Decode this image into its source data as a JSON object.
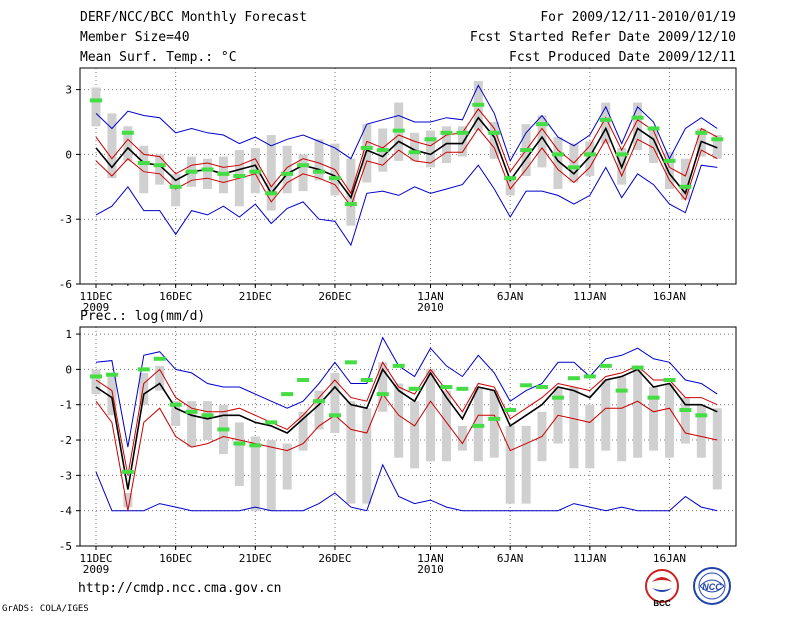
{
  "header": {
    "left": [
      "DERF/NCC/BCC Monthly Forecast",
      "Member Size=40",
      "Mean Surf. Temp.: °C"
    ],
    "right": [
      "For 2009/12/11-2010/01/19",
      "Fcst Started Refer Date 2009/12/10",
      "Fcst Produced Date 2009/12/11"
    ]
  },
  "footer": {
    "url": "http://cmdp.ncc.cma.gov.cn",
    "credit": "GrADS: COLA/IGES"
  },
  "logos": {
    "bcc": "BCC",
    "ncc": "NCC"
  },
  "colors": {
    "ensemble": "#0000cc",
    "spread": "#cc0000",
    "mean": "#000000",
    "box": "#d0d0d0",
    "observed": "#44dd44"
  },
  "chart_data": [
    {
      "type": "line",
      "title": "Mean Surf. Temp.: °C",
      "ylabel": "°C",
      "ylim": [
        -6,
        4
      ],
      "yticks": [
        -6,
        -3,
        0,
        3
      ],
      "xtick_positions": [
        0,
        5,
        10,
        15,
        21,
        26,
        31,
        36
      ],
      "xtick_labels": [
        "11DEC",
        "16DEC",
        "21DEC",
        "26DEC",
        "1JAN",
        "6JAN",
        "11JAN",
        "16JAN"
      ],
      "xtick_sublabels": {
        "0": "2009",
        "21": "2010"
      },
      "n_days": 40,
      "series": [
        {
          "name": "ensemble max",
          "role": "max",
          "values": [
            1.9,
            1.2,
            2.0,
            1.8,
            1.7,
            1.0,
            1.2,
            1.0,
            0.9,
            0.5,
            0.8,
            0.4,
            0.7,
            0.9,
            0.6,
            0.3,
            -0.2,
            1.4,
            1.6,
            1.8,
            1.5,
            1.5,
            1.7,
            1.6,
            3.2,
            1.9,
            -0.3,
            1.0,
            1.8,
            0.8,
            0.4,
            0.9,
            2.2,
            0.5,
            2.2,
            1.5,
            -0.2,
            1.2,
            1.7,
            1.2
          ]
        },
        {
          "name": "upper spread",
          "role": "upper",
          "values": [
            0.8,
            -0.2,
            0.7,
            0.0,
            -0.1,
            -0.9,
            -0.5,
            -0.4,
            -0.6,
            -0.5,
            -0.2,
            -1.5,
            -0.6,
            -0.2,
            -0.4,
            -0.7,
            -1.8,
            0.6,
            0.3,
            0.9,
            0.6,
            0.4,
            0.9,
            1.0,
            2.1,
            1.2,
            -0.8,
            0.2,
            1.2,
            0.2,
            -0.4,
            0.4,
            1.7,
            0.2,
            1.6,
            1.1,
            -0.6,
            -1.0,
            1.2,
            0.8
          ]
        },
        {
          "name": "ensemble mean",
          "role": "mean",
          "values": [
            0.3,
            -0.6,
            0.3,
            -0.4,
            -0.5,
            -1.2,
            -0.8,
            -0.7,
            -0.9,
            -0.7,
            -0.5,
            -1.8,
            -0.9,
            -0.5,
            -0.7,
            -1.0,
            -2.0,
            0.2,
            -0.1,
            0.6,
            0.2,
            0.0,
            0.5,
            0.5,
            1.7,
            0.8,
            -1.2,
            -0.2,
            0.8,
            -0.3,
            -0.9,
            -0.1,
            1.2,
            -0.6,
            1.2,
            0.7,
            -0.9,
            -1.8,
            0.6,
            0.3
          ]
        },
        {
          "name": "lower spread",
          "role": "lower",
          "values": [
            -0.3,
            -1.0,
            -0.2,
            -0.8,
            -0.9,
            -1.6,
            -1.2,
            -1.1,
            -1.3,
            -1.1,
            -0.9,
            -2.2,
            -1.3,
            -0.9,
            -1.1,
            -1.4,
            -2.4,
            -0.3,
            -0.5,
            0.2,
            -0.3,
            -0.4,
            0.1,
            0.1,
            1.2,
            0.3,
            -1.6,
            -0.7,
            0.3,
            -0.7,
            -1.3,
            -0.6,
            0.7,
            -1.0,
            0.7,
            0.3,
            -1.2,
            -2.1,
            0.2,
            -0.2
          ]
        },
        {
          "name": "ensemble min",
          "role": "min",
          "values": [
            -2.8,
            -2.4,
            -1.5,
            -2.6,
            -2.6,
            -3.7,
            -2.6,
            -2.8,
            -2.4,
            -2.9,
            -2.3,
            -3.2,
            -2.5,
            -2.2,
            -3.0,
            -3.1,
            -4.2,
            -1.8,
            -1.7,
            -1.9,
            -1.5,
            -1.8,
            -1.6,
            -1.4,
            -0.5,
            -1.6,
            -2.9,
            -1.7,
            -1.7,
            -1.9,
            -2.3,
            -1.9,
            -0.6,
            -2.0,
            -0.9,
            -1.4,
            -2.3,
            -2.7,
            -0.5,
            -0.6
          ]
        },
        {
          "name": "box top",
          "role": "box_top",
          "values": [
            3.1,
            1.9,
            1.3,
            0.4,
            0.0,
            -0.9,
            -0.1,
            -0.2,
            -0.1,
            0.2,
            0.3,
            0.9,
            0.4,
            0.0,
            0.7,
            0.5,
            -0.2,
            1.4,
            1.2,
            2.4,
            1.0,
            1.1,
            1.3,
            1.3,
            3.4,
            1.5,
            -1.1,
            1.4,
            1.8,
            0.8,
            0.5,
            0.6,
            2.4,
            0.3,
            2.4,
            1.3,
            0.1,
            -0.2,
            1.2,
            0.9
          ]
        },
        {
          "name": "box bottom",
          "role": "box_bottom",
          "values": [
            1.3,
            -1.1,
            -0.3,
            -1.8,
            -1.4,
            -2.4,
            -1.5,
            -1.6,
            -1.8,
            -2.4,
            -1.8,
            -2.6,
            -1.8,
            -1.7,
            -1.2,
            -1.9,
            -3.3,
            -1.3,
            -0.8,
            -0.3,
            -0.3,
            -0.6,
            -0.4,
            -0.1,
            1.1,
            -0.2,
            -1.9,
            -1.0,
            -0.6,
            -1.6,
            -1.3,
            -1.0,
            0.5,
            -1.4,
            0.2,
            -0.4,
            -1.6,
            -2.1,
            -0.1,
            -0.2
          ]
        },
        {
          "name": "observed",
          "role": "obs",
          "values": [
            2.5,
            null,
            1.0,
            -0.4,
            -0.5,
            -1.5,
            -0.8,
            -0.7,
            -0.9,
            -1.0,
            -0.8,
            -1.8,
            -0.9,
            -0.5,
            -0.8,
            -1.1,
            -2.3,
            0.3,
            0.2,
            1.1,
            0.1,
            0.7,
            1.0,
            1.0,
            2.3,
            1.0,
            -1.1,
            0.2,
            1.4,
            0.0,
            -0.6,
            0.0,
            1.6,
            0.0,
            1.7,
            1.2,
            -0.3,
            -1.5,
            1.0,
            0.7
          ]
        }
      ]
    },
    {
      "type": "line",
      "title": "Prec.: log(mm/d)",
      "ylabel": "log(mm/d)",
      "ylim": [
        -5,
        1.2
      ],
      "yticks": [
        -5,
        -4,
        -3,
        -2,
        -1,
        0,
        1
      ],
      "xtick_positions": [
        0,
        5,
        10,
        15,
        21,
        26,
        31,
        36
      ],
      "xtick_labels": [
        "11DEC",
        "16DEC",
        "21DEC",
        "26DEC",
        "1JAN",
        "6JAN",
        "11JAN",
        "16JAN"
      ],
      "xtick_sublabels": {
        "0": "2009",
        "21": "2010"
      },
      "n_days": 40,
      "series": [
        {
          "name": "ensemble max",
          "role": "max",
          "values": [
            0.2,
            0.25,
            -2.2,
            0.4,
            0.5,
            0.0,
            -0.1,
            -0.4,
            -0.5,
            -0.5,
            -0.7,
            -0.9,
            -1.1,
            -0.9,
            -0.4,
            0.2,
            -0.4,
            -0.4,
            0.9,
            0.1,
            -0.2,
            0.6,
            0.1,
            -0.2,
            0.4,
            -0.1,
            -0.9,
            -0.6,
            -0.4,
            0.2,
            0.2,
            -0.2,
            0.3,
            0.4,
            0.6,
            0.3,
            0.2,
            -0.3,
            -0.4,
            -0.7
          ]
        },
        {
          "name": "upper spread",
          "role": "upper",
          "values": [
            -0.3,
            -0.6,
            -3.0,
            -0.4,
            0.0,
            -0.8,
            -1.1,
            -1.2,
            -1.2,
            -1.1,
            -1.3,
            -1.5,
            -1.7,
            -1.3,
            -0.8,
            -0.3,
            -0.8,
            -0.9,
            0.2,
            -0.5,
            -0.7,
            0.0,
            -0.6,
            -1.2,
            -0.4,
            -0.5,
            -1.4,
            -1.1,
            -0.8,
            -0.4,
            -0.5,
            -0.6,
            -0.2,
            -0.1,
            0.1,
            -0.3,
            -0.3,
            -0.8,
            -0.8,
            -1.0
          ]
        },
        {
          "name": "ensemble mean",
          "role": "mean",
          "values": [
            -0.5,
            -0.8,
            -3.4,
            -0.7,
            -0.4,
            -1.1,
            -1.3,
            -1.4,
            -1.3,
            -1.3,
            -1.5,
            -1.6,
            -1.8,
            -1.4,
            -1.0,
            -0.5,
            -1.0,
            -1.1,
            0.0,
            -0.6,
            -0.9,
            -0.1,
            -0.8,
            -1.4,
            -0.5,
            -0.6,
            -1.6,
            -1.3,
            -1.0,
            -0.5,
            -0.6,
            -0.8,
            -0.3,
            -0.2,
            0.0,
            -0.5,
            -0.4,
            -1.0,
            -1.0,
            -1.2
          ]
        },
        {
          "name": "lower spread",
          "role": "lower",
          "values": [
            -0.9,
            -1.5,
            -4.0,
            -1.5,
            -1.1,
            -1.9,
            -2.2,
            -2.1,
            -1.9,
            -2.0,
            -2.1,
            -2.2,
            -2.3,
            -2.1,
            -1.6,
            -1.3,
            -1.7,
            -1.8,
            -0.7,
            -1.3,
            -1.6,
            -0.9,
            -1.5,
            -2.1,
            -1.3,
            -1.3,
            -2.3,
            -2.1,
            -1.9,
            -1.3,
            -1.4,
            -1.5,
            -1.1,
            -1.1,
            -0.9,
            -1.2,
            -1.1,
            -1.8,
            -1.9,
            -2.0
          ]
        },
        {
          "name": "ensemble min",
          "role": "min",
          "values": [
            -2.9,
            -4.0,
            -4.0,
            -4.0,
            -3.8,
            -3.9,
            -4.0,
            -4.0,
            -4.0,
            -4.0,
            -3.9,
            -4.0,
            -4.0,
            -4.0,
            -3.8,
            -3.5,
            -3.9,
            -4.0,
            -2.7,
            -3.6,
            -3.8,
            -3.7,
            -3.9,
            -4.0,
            -4.0,
            -4.0,
            -4.0,
            -4.0,
            -4.0,
            -4.0,
            -3.8,
            -3.9,
            -4.0,
            -3.9,
            -4.0,
            -4.0,
            -4.0,
            -3.6,
            -3.9,
            -4.0
          ]
        },
        {
          "name": "box top",
          "role": "box_top",
          "values": [
            0.0,
            -0.1,
            -3.5,
            -0.1,
            0.1,
            -0.9,
            -0.9,
            -0.9,
            -1.0,
            -1.5,
            -1.9,
            -2.0,
            -2.1,
            -1.2,
            -0.6,
            -0.1,
            -0.9,
            -1.1,
            0.2,
            -0.4,
            -0.9,
            0.0,
            -0.6,
            -1.6,
            -0.5,
            -0.6,
            -1.6,
            -1.6,
            -1.2,
            -0.5,
            -0.5,
            -1.0,
            -0.3,
            -0.2,
            0.1,
            -0.5,
            -0.4,
            -0.8,
            -1.0,
            -1.1
          ]
        },
        {
          "name": "box bottom",
          "role": "box_bottom",
          "values": [
            -0.7,
            -1.3,
            -3.9,
            -1.0,
            -0.6,
            -1.6,
            -2.2,
            -2.0,
            -2.4,
            -3.3,
            -4.0,
            -4.0,
            -3.4,
            -2.3,
            -1.7,
            -1.8,
            -3.8,
            -3.8,
            -1.2,
            -2.5,
            -2.8,
            -2.6,
            -2.6,
            -2.3,
            -2.6,
            -2.5,
            -3.8,
            -3.8,
            -2.6,
            -2.1,
            -2.8,
            -2.8,
            -2.3,
            -2.6,
            -2.5,
            -2.3,
            -2.5,
            -2.1,
            -2.5,
            -3.4
          ]
        },
        {
          "name": "observed",
          "role": "obs",
          "values": [
            -0.2,
            -0.15,
            -2.9,
            0.0,
            0.3,
            -1.0,
            -1.2,
            -1.3,
            -1.7,
            -2.1,
            -2.15,
            -1.5,
            -0.7,
            -0.3,
            -0.9,
            -1.3,
            0.2,
            -0.3,
            -0.7,
            0.1,
            -0.55,
            null,
            -0.5,
            -0.55,
            -1.6,
            -1.4,
            -1.15,
            -0.45,
            -0.5,
            -0.8,
            -0.25,
            -0.2,
            0.1,
            -0.6,
            0.05,
            -0.8,
            -0.3,
            -1.15,
            -1.3,
            null
          ]
        }
      ]
    }
  ]
}
